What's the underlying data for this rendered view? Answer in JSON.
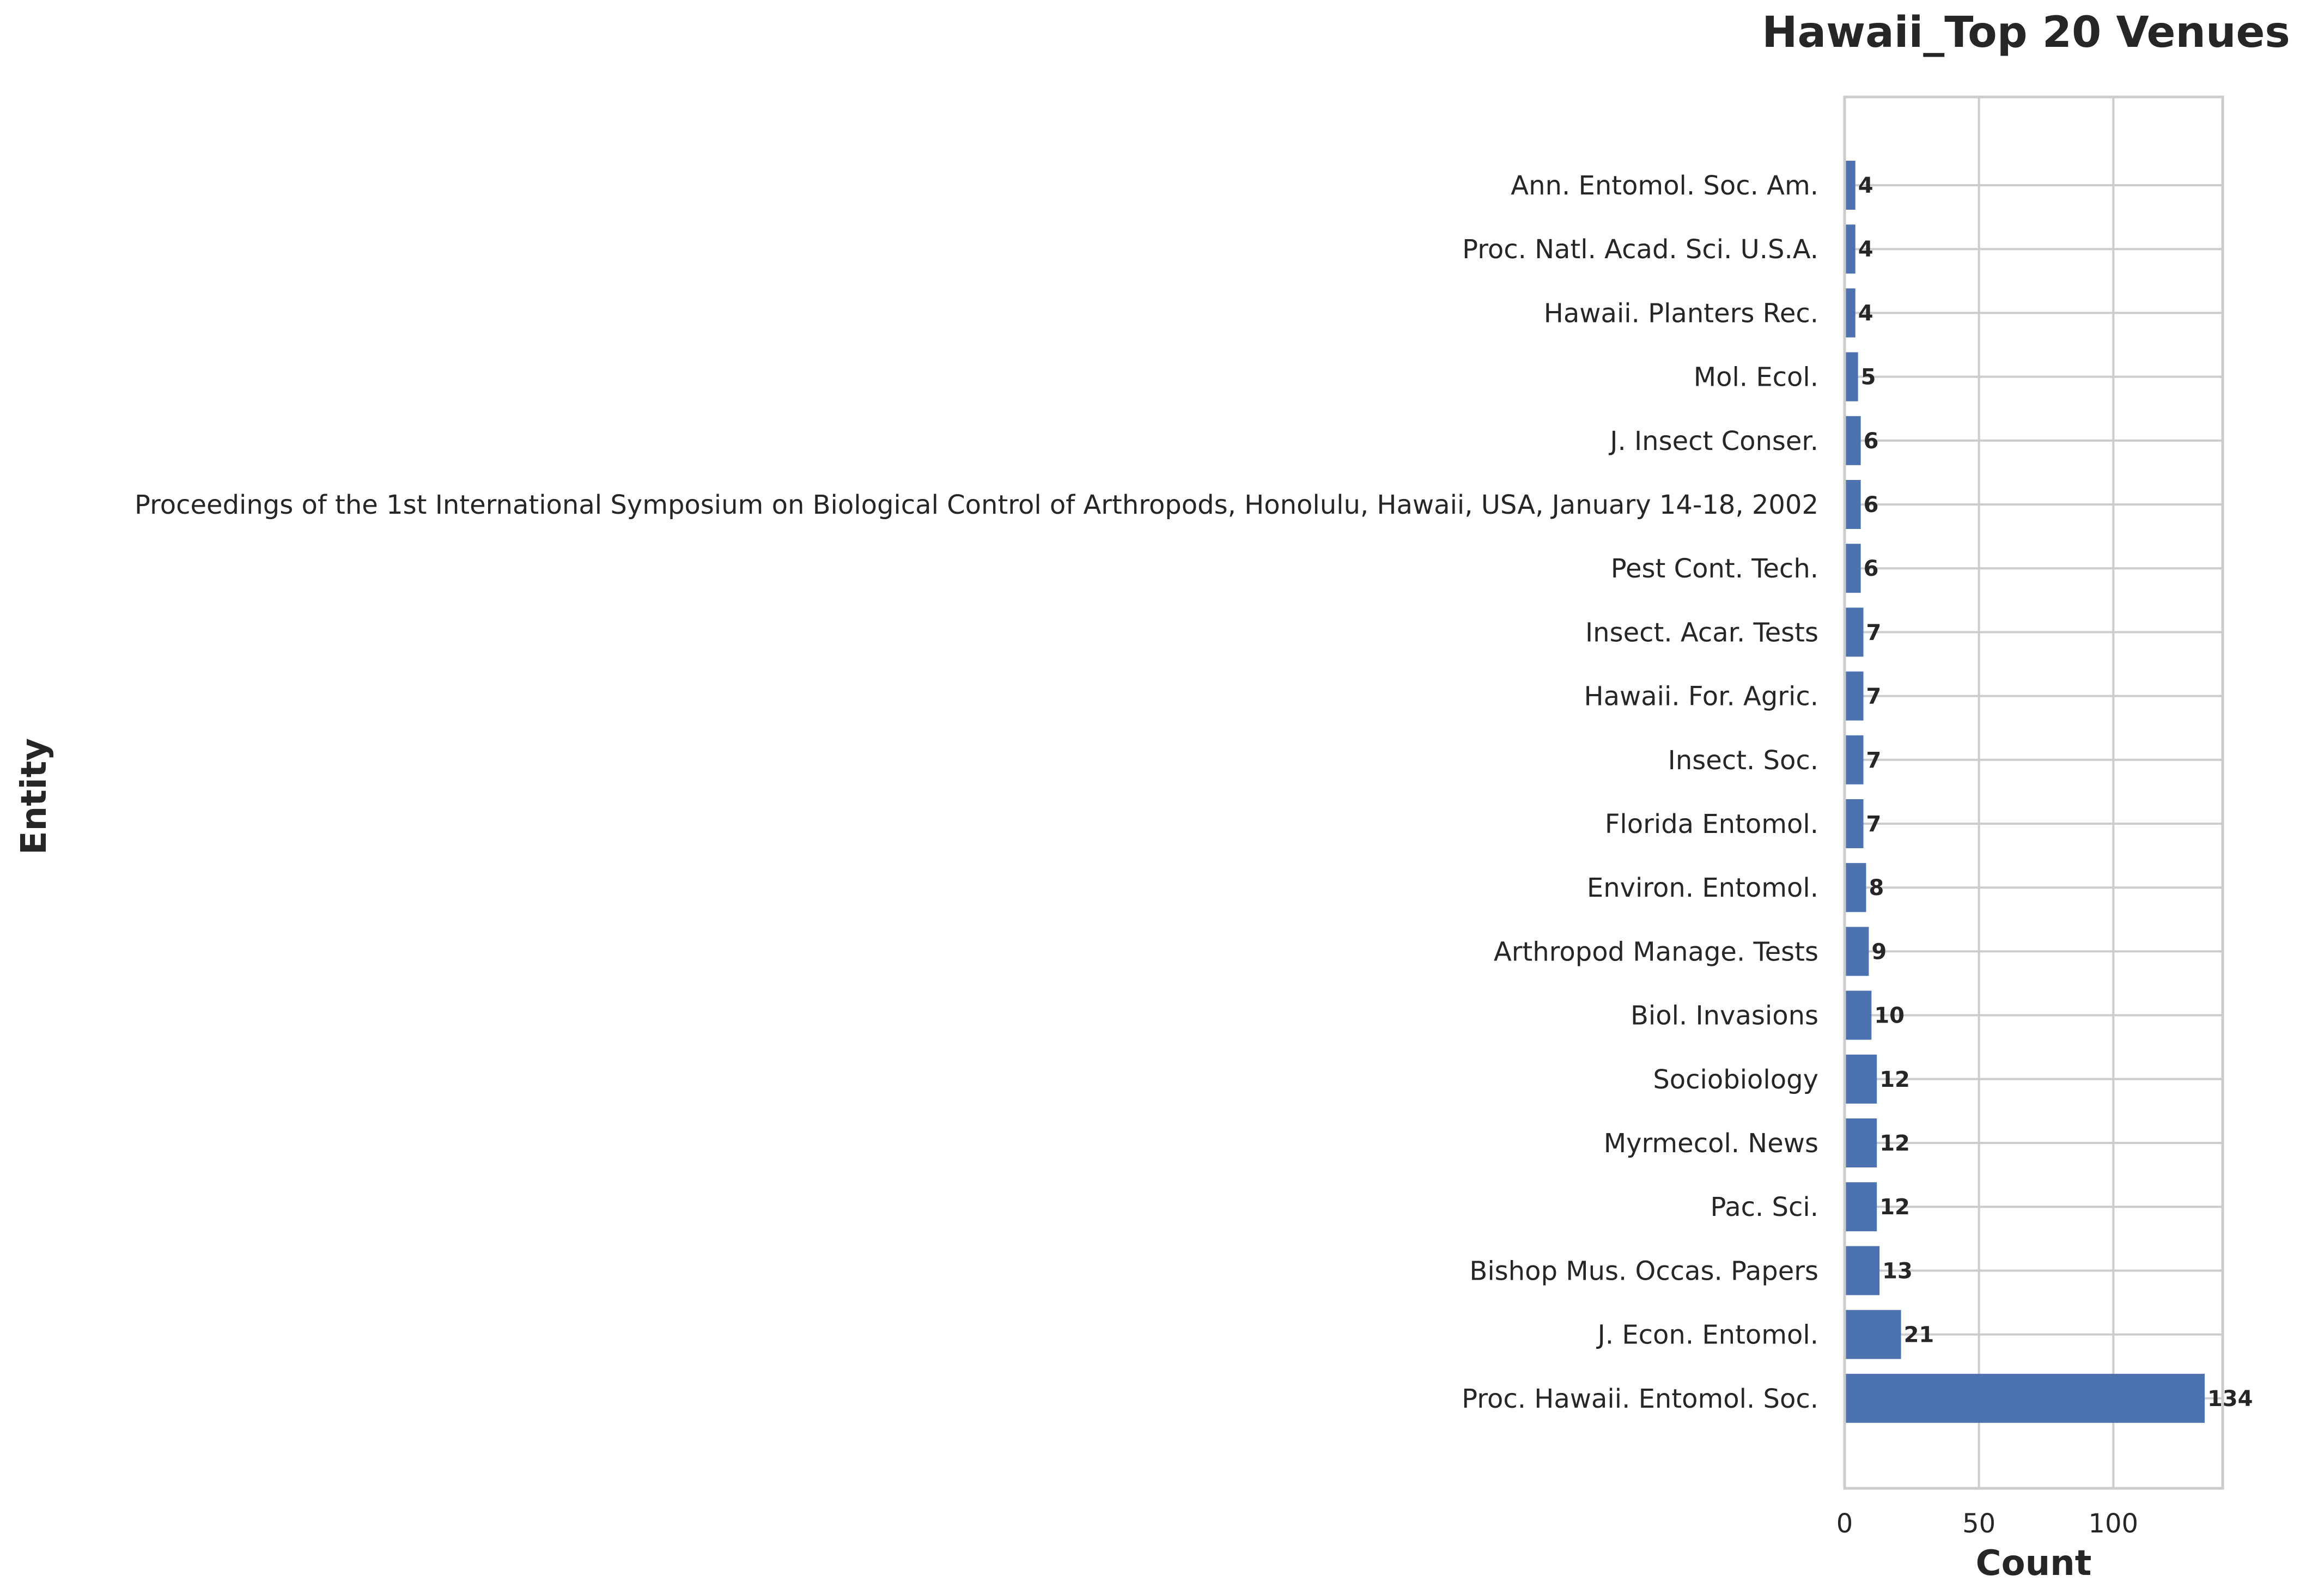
{
  "chart_data": {
    "type": "bar",
    "orientation": "horizontal",
    "title": "Hawaii_Top 20 Venues",
    "xlabel": "Count",
    "ylabel": "Entity",
    "xlim": [
      0,
      140.7
    ],
    "xticks": [
      0,
      50,
      100
    ],
    "grid": true,
    "bar_color": "#4c72b0",
    "categories": [
      "Ann. Entomol. Soc. Am.",
      "Proc. Natl. Acad. Sci. U.S.A.",
      "Hawaii. Planters Rec.",
      "Mol. Ecol.",
      "J. Insect Conser.",
      "Proceedings of the 1st International Symposium on Biological Control of Arthropods, Honolulu, Hawaii, USA, January 14-18, 2002",
      "Pest Cont. Tech.",
      "Insect. Acar. Tests",
      "Hawaii. For. Agric.",
      "Insect. Soc.",
      "Florida Entomol.",
      "Environ. Entomol.",
      "Arthropod Manage. Tests",
      "Biol. Invasions",
      "Sociobiology",
      "Myrmecol. News",
      "Pac. Sci.",
      "Bishop Mus. Occas. Papers",
      "J. Econ. Entomol.",
      "Proc. Hawaii. Entomol. Soc."
    ],
    "values": [
      4,
      4,
      4,
      5,
      6,
      6,
      6,
      7,
      7,
      7,
      7,
      8,
      9,
      10,
      12,
      12,
      12,
      13,
      21,
      134
    ],
    "value_labels": [
      "4",
      "4",
      "4",
      "5",
      "6",
      "6",
      "6",
      "7",
      "7",
      "7",
      "7",
      "8",
      "9",
      "10",
      "12",
      "12",
      "12",
      "13",
      "21",
      "134"
    ]
  }
}
